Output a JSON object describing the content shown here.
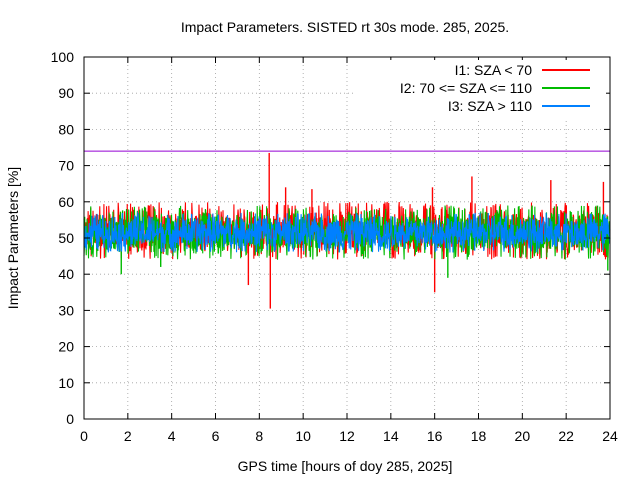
{
  "chart_data": {
    "type": "line",
    "title": "Impact Parameters. SISTED rt 30s mode. 285, 2025.",
    "xlabel": "GPS time [hours of doy 285, 2025]",
    "ylabel": "Impact Parameters [%]",
    "xlim": [
      0,
      24
    ],
    "ylim": [
      0,
      100
    ],
    "xticks": [
      0,
      2,
      4,
      6,
      8,
      10,
      12,
      14,
      16,
      18,
      20,
      22,
      24
    ],
    "yticks": [
      0,
      10,
      20,
      30,
      40,
      50,
      60,
      70,
      80,
      90,
      100
    ],
    "grid": true,
    "legend_position": "top-right",
    "threshold": {
      "value": 74,
      "color": "#9400d3"
    },
    "series": [
      {
        "name": "I1: SZA < 70",
        "color": "#ff0000",
        "mean": 51.5,
        "typical_range": [
          44,
          60
        ],
        "extremes": [
          {
            "x": 8.45,
            "y": 73.5
          },
          {
            "x": 8.5,
            "y": 30.5
          },
          {
            "x": 7.5,
            "y": 37
          },
          {
            "x": 16.0,
            "y": 35
          },
          {
            "x": 15.9,
            "y": 64
          },
          {
            "x": 17.7,
            "y": 67
          },
          {
            "x": 23.7,
            "y": 65.5
          },
          {
            "x": 21.3,
            "y": 66
          },
          {
            "x": 9.2,
            "y": 64
          },
          {
            "x": 10.4,
            "y": 63.5
          }
        ]
      },
      {
        "name": "I2: 70 <= SZA <= 110",
        "color": "#00bb00",
        "mean": 51.5,
        "typical_range": [
          44,
          59
        ],
        "extremes": [
          {
            "x": 1.7,
            "y": 40
          },
          {
            "x": 3.5,
            "y": 42
          },
          {
            "x": 23.9,
            "y": 41
          },
          {
            "x": 16.6,
            "y": 39
          }
        ]
      },
      {
        "name": "I3: SZA > 110",
        "color": "#0080ff",
        "mean": 51.5,
        "typical_range": [
          46,
          57
        ],
        "extremes": []
      }
    ]
  }
}
